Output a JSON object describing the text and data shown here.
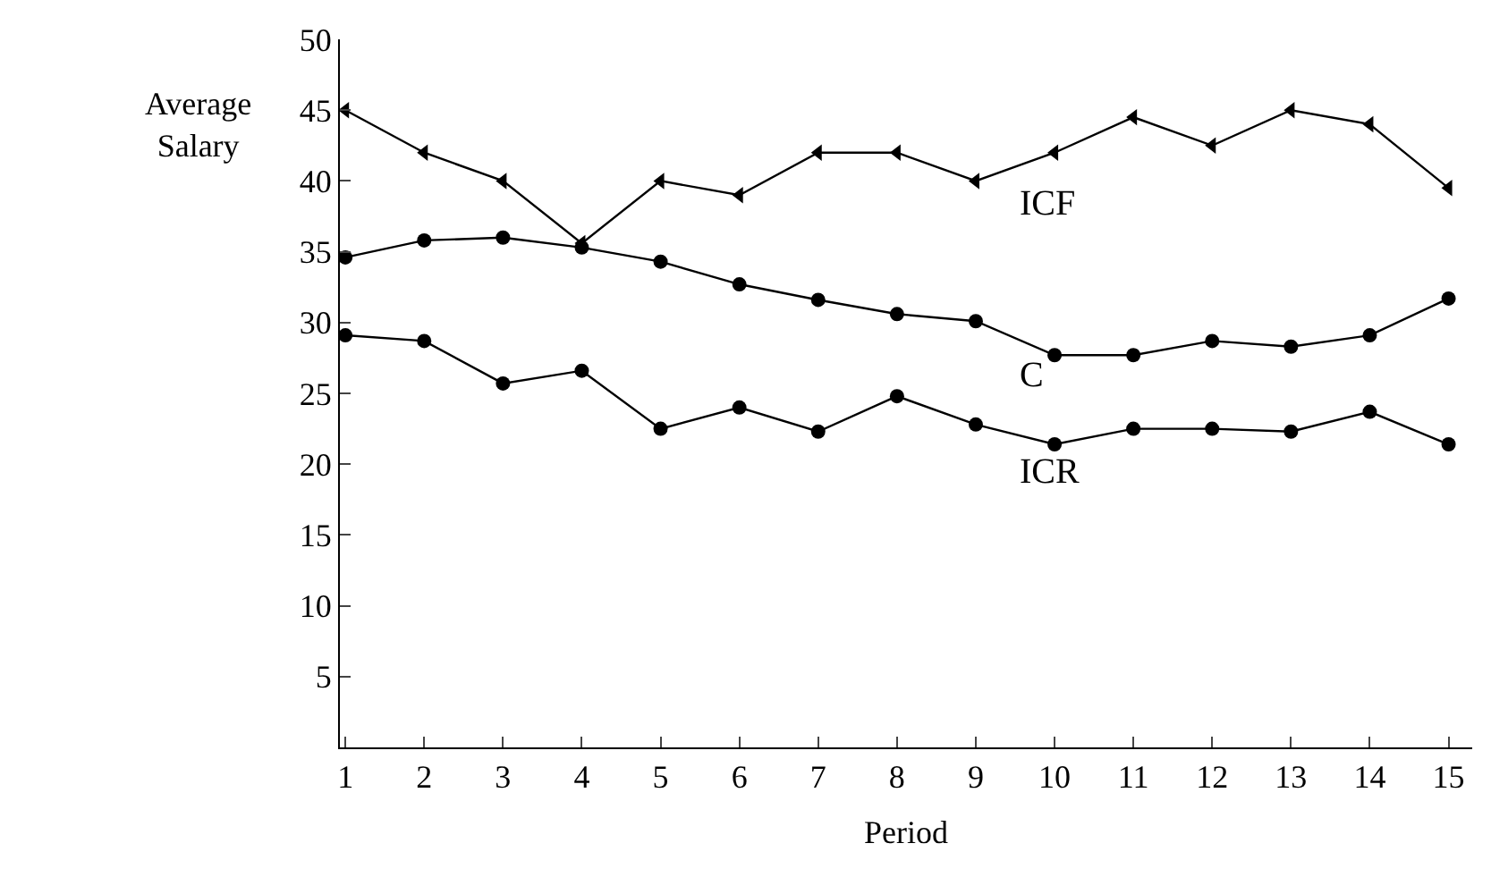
{
  "chart_data": {
    "type": "line",
    "xlabel": "Period",
    "ylabel": "Average Salary",
    "x": [
      1,
      2,
      3,
      4,
      5,
      6,
      7,
      8,
      9,
      10,
      11,
      12,
      13,
      14,
      15
    ],
    "xlim": [
      0.93,
      15.3
    ],
    "xticks": [
      1,
      2,
      3,
      4,
      5,
      6,
      7,
      8,
      9,
      10,
      11,
      12,
      13,
      14,
      15
    ],
    "ylim": [
      0,
      50
    ],
    "yticks": [
      5,
      10,
      15,
      20,
      25,
      30,
      35,
      40,
      45,
      50
    ],
    "legend": false,
    "line_style": "solid",
    "series": [
      {
        "name": "ICF",
        "color": "#000000",
        "marker": "triangle",
        "values": [
          45,
          42,
          40,
          35.6,
          40,
          39,
          42,
          42,
          40,
          42,
          44.5,
          42.5,
          45,
          44,
          39.5
        ]
      },
      {
        "name": "C",
        "color": "#000000",
        "marker": "circle",
        "values": [
          34.6,
          35.8,
          36,
          35.3,
          34.3,
          32.7,
          31.6,
          30.6,
          30.1,
          27.7,
          27.7,
          28.7,
          28.3,
          29.1,
          31.7
        ]
      },
      {
        "name": "ICR",
        "color": "#000000",
        "marker": "circle",
        "values": [
          29.1,
          28.7,
          25.7,
          26.6,
          22.5,
          24,
          22.3,
          24.8,
          22.8,
          21.4,
          22.5,
          22.5,
          22.3,
          23.7,
          21.4
        ]
      }
    ]
  }
}
